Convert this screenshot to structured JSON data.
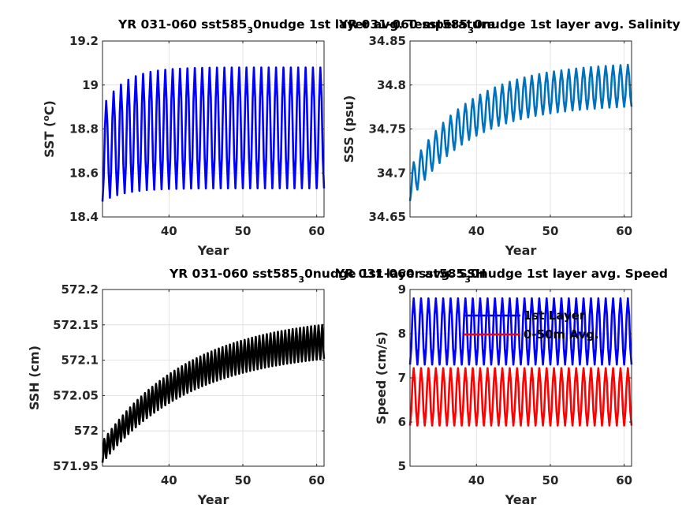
{
  "chart_data": [
    {
      "type": "line",
      "title": "YR 031-060 sst585",
      "title_sub": "3",
      "title_rest": "0nudge 1st layer avg. Temperature",
      "xlabel": "Year",
      "ylabel": "SST (",
      "ylabel_sup": "o",
      "ylabel_rest": "C)",
      "xlim": [
        31,
        61
      ],
      "ylim": [
        18.4,
        19.2
      ],
      "xticks": [
        40,
        50,
        60
      ],
      "yticks": [
        18.4,
        18.6,
        18.8,
        19.0,
        19.2
      ],
      "ytick_labels": [
        "18.4",
        "18.6",
        "18.8",
        "19",
        "19.2"
      ],
      "grid": true,
      "series": [
        {
          "color": "#0000ff",
          "x_start": 31,
          "x_end": 61,
          "cycles_per_year": 1,
          "min_start": 18.47,
          "min_end": 18.53,
          "max_start": 18.9,
          "max_end": 19.08,
          "tau_years": 3
        }
      ]
    },
    {
      "type": "line",
      "title": "YR 031-060 sst585",
      "title_sub": "3",
      "title_rest": "0nudge 1st layer avg. Salinity",
      "xlabel": "Year",
      "ylabel": "SSS (psu)",
      "xlim": [
        31,
        61
      ],
      "ylim": [
        34.65,
        34.85
      ],
      "xticks": [
        40,
        50,
        60
      ],
      "yticks": [
        34.65,
        34.7,
        34.75,
        34.8,
        34.85
      ],
      "ytick_labels": [
        "34.65",
        "34.7",
        "34.75",
        "34.8",
        "34.85"
      ],
      "grid": true,
      "series": [
        {
          "color": "#0072bd",
          "x_start": 31,
          "x_end": 61,
          "cycles_per_year": 1,
          "min_start": 34.668,
          "min_end": 34.778,
          "max_start": 34.705,
          "max_end": 34.826,
          "tau_years": 8
        }
      ]
    },
    {
      "type": "line",
      "title": "YR 031-060 sst585",
      "title_sub": "3",
      "title_rest": "0nudge 1st layer avg. SSH",
      "xlabel": "Year",
      "ylabel": "SSH (cm)",
      "xlim": [
        31,
        61
      ],
      "ylim": [
        571.95,
        572.2
      ],
      "xticks": [
        40,
        50,
        60
      ],
      "yticks": [
        571.95,
        572.0,
        572.05,
        572.1,
        572.15,
        572.2
      ],
      "ytick_labels": [
        "571.95",
        "572",
        "572.05",
        "572.1",
        "572.15",
        "572.2"
      ],
      "grid": true,
      "series": [
        {
          "color": "#000000",
          "x_start": 31,
          "x_end": 61,
          "cycles_per_year": 2,
          "min_start": 571.955,
          "min_end": 572.115,
          "max_start": 571.985,
          "max_end": 572.165,
          "tau_years": 12
        }
      ]
    },
    {
      "type": "line",
      "title": "YR 031-060 sst585",
      "title_sub": "3",
      "title_rest": "0nudge 1st layer avg. Speed",
      "xlabel": "Year",
      "ylabel": "Speed (cm/s)",
      "xlim": [
        31,
        61
      ],
      "ylim": [
        5,
        9
      ],
      "xticks": [
        40,
        50,
        60
      ],
      "yticks": [
        5,
        6,
        7,
        8,
        9
      ],
      "ytick_labels": [
        "5",
        "6",
        "7",
        "8",
        "9"
      ],
      "grid": true,
      "legend": "top-center",
      "series": [
        {
          "name": "1st Layer",
          "color": "#0000ff",
          "x_start": 31,
          "x_end": 61,
          "cycles_per_year": 1,
          "min_start": 7.3,
          "min_end": 7.3,
          "max_start": 8.8,
          "max_end": 8.8,
          "tau_years": 1
        },
        {
          "name": "0-50m Avg.",
          "color": "#ff0000",
          "x_start": 31,
          "x_end": 61,
          "cycles_per_year": 1,
          "min_start": 5.92,
          "min_end": 5.92,
          "max_start": 7.22,
          "max_end": 7.22,
          "tau_years": 1
        }
      ]
    }
  ]
}
